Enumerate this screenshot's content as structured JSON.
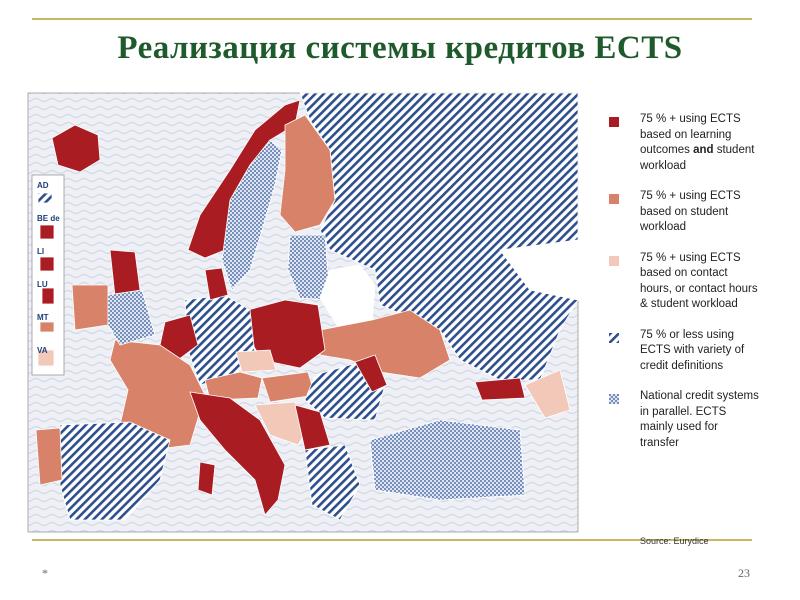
{
  "header": {
    "title": "Реализация системы кредитов ECTS"
  },
  "map": {
    "insets": [
      "AD",
      "BE de",
      "LI",
      "LU",
      "MT",
      "VA"
    ]
  },
  "legend": {
    "items": [
      {
        "text": "75 % + using ECTS based on learning outcomes",
        "bold": "and",
        "text_end": "student workload"
      },
      {
        "text": "75 % + using ECTS based on student workload"
      },
      {
        "text": "75 % + using ECTS based on contact hours, or contact hours & student workload"
      },
      {
        "text": "75 % or less using ECTS with variety of credit definitions"
      },
      {
        "text": "National credit systems in parallel. ECTS mainly used for transfer"
      }
    ],
    "source": "Source: Eurydice"
  },
  "footer": {
    "mark": "*",
    "page": "23"
  }
}
